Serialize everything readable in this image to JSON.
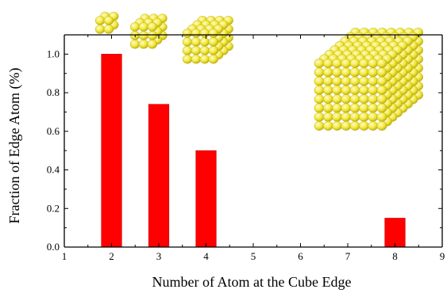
{
  "chart_data": {
    "type": "bar",
    "title": "",
    "xlabel": "Number of Atom at the Cube Edge",
    "ylabel": "Fraction of Edge Atom (%)",
    "x": [
      2,
      3,
      4,
      8
    ],
    "values": [
      1.0,
      0.74,
      0.5,
      0.15
    ],
    "xlim": [
      1,
      9
    ],
    "ylim": [
      0,
      1.1
    ],
    "xticks": [
      "1",
      "2",
      "3",
      "4",
      "5",
      "6",
      "7",
      "8",
      "9"
    ],
    "yticks": [
      "0.0",
      "0.2",
      "0.4",
      "0.6",
      "0.8",
      "1.0"
    ],
    "grid": false,
    "colors": {
      "bar": "#ff0000",
      "bar_edge": "#cc0000",
      "atom": "#f2e83a",
      "atom_shadow": "#b7a80f"
    },
    "illustrations": [
      {
        "name": "cube-2-atoms-icon",
        "edge_atoms": 2
      },
      {
        "name": "cube-3-atoms-icon",
        "edge_atoms": 3
      },
      {
        "name": "cube-4-atoms-icon",
        "edge_atoms": 4
      },
      {
        "name": "cube-8-atoms-icon",
        "edge_atoms": 8
      }
    ]
  }
}
